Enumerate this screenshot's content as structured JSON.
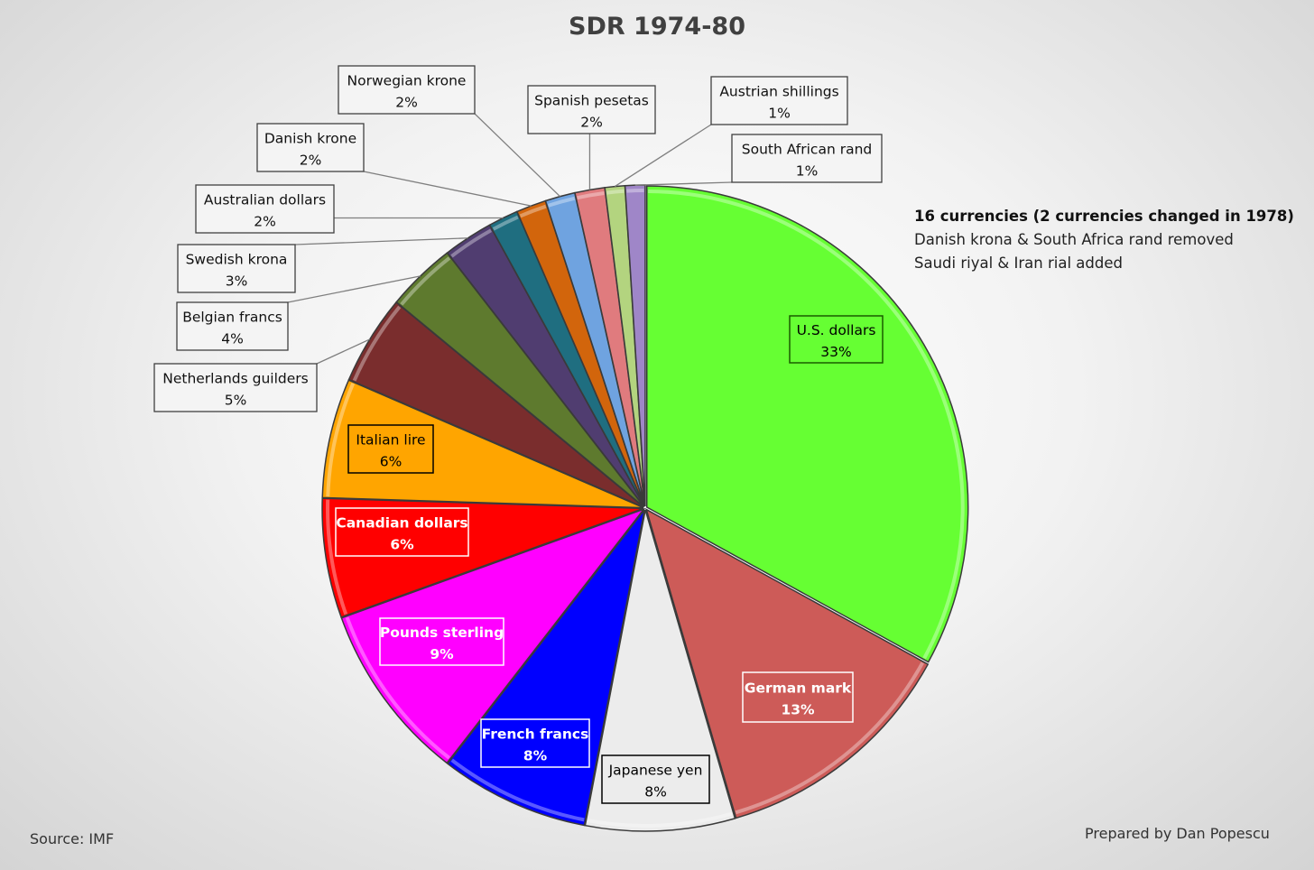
{
  "chart_data": {
    "type": "pie",
    "title": "SDR 1974-80",
    "start": "12 o'clock, clockwise",
    "slices": [
      {
        "label": "U.S. dollars",
        "value": 33,
        "display": "33%",
        "color": "#66ff33"
      },
      {
        "label": "German mark",
        "value": 12.5,
        "display": "13%",
        "color": "#cd5b58"
      },
      {
        "label": "Japanese yen",
        "value": 7.5,
        "display": "8%",
        "color": "#ececec"
      },
      {
        "label": "French francs",
        "value": 7.5,
        "display": "8%",
        "color": "#0000ff"
      },
      {
        "label": "Pounds sterling",
        "value": 9,
        "display": "9%",
        "color": "#ff00ff"
      },
      {
        "label": "Canadian dollars",
        "value": 6,
        "display": "6%",
        "color": "#ff0000"
      },
      {
        "label": "Italian lire",
        "value": 6,
        "display": "6%",
        "color": "#ffa500"
      },
      {
        "label": "Netherlands guilders",
        "value": 4.5,
        "display": "5%",
        "color": "#7a2d2d"
      },
      {
        "label": "Belgian francs",
        "value": 3.5,
        "display": "4%",
        "color": "#5e7a2e"
      },
      {
        "label": "Swedish krona",
        "value": 2.5,
        "display": "3%",
        "color": "#503d70"
      },
      {
        "label": "Australian dollars",
        "value": 1.5,
        "display": "2%",
        "color": "#1f6e80"
      },
      {
        "label": "Danish krone",
        "value": 1.5,
        "display": "2%",
        "color": "#d2650c"
      },
      {
        "label": "Norwegian krone",
        "value": 1.5,
        "display": "2%",
        "color": "#6fa3e0"
      },
      {
        "label": "Spanish pesetas",
        "value": 1.5,
        "display": "2%",
        "color": "#e07b7e"
      },
      {
        "label": "Austrian shillings",
        "value": 1,
        "display": "1%",
        "color": "#b3d47f"
      },
      {
        "label": "South African rand",
        "value": 1,
        "display": "1%",
        "color": "#9f86c8"
      }
    ]
  },
  "note": [
    "16 currencies (2 currencies changed in 1978)",
    "Danish krona & South Africa rand removed",
    "Saudi riyal & Iran rial added"
  ],
  "source": "Source: IMF",
  "credit": "Prepared by Dan Popescu"
}
